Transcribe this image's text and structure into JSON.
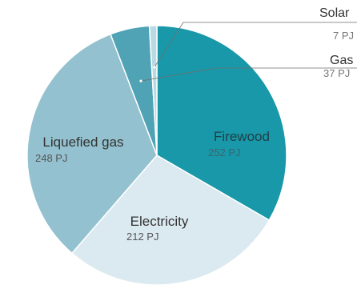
{
  "chart_data": {
    "type": "pie",
    "unit": "PJ",
    "slices": [
      {
        "name": "Firewood",
        "value": 252,
        "value_label": "252 PJ",
        "color": "#1898a8"
      },
      {
        "name": "Electricity",
        "value": 212,
        "value_label": "212 PJ",
        "color": "#dbeaf0"
      },
      {
        "name": "Liquefied gas",
        "value": 248,
        "value_label": "248 PJ",
        "color": "#94c1cf"
      },
      {
        "name": "Gas",
        "value": 37,
        "value_label": "37 PJ",
        "color": "#4fa3b4"
      },
      {
        "name": "Solar",
        "value": 7,
        "value_label": "7 PJ",
        "color": "#b9dae3"
      }
    ]
  }
}
